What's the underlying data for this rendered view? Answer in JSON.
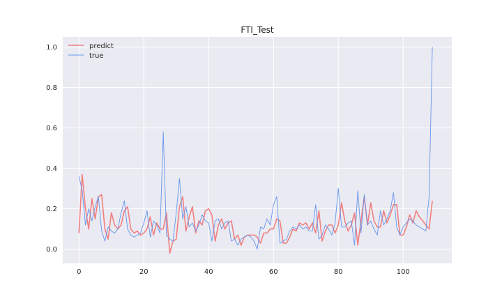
{
  "chart_data": {
    "type": "line",
    "title": "FTI_Test",
    "xlabel": "",
    "ylabel": "",
    "xlim": [
      -5,
      115
    ],
    "ylim": [
      -0.07,
      1.05
    ],
    "xticks": [
      0,
      20,
      40,
      60,
      80,
      100
    ],
    "yticks": [
      0.0,
      0.2,
      0.4,
      0.6,
      0.8,
      1.0
    ],
    "xtick_labels": [
      "0",
      "20",
      "40",
      "60",
      "80",
      "100"
    ],
    "ytick_labels": [
      "0.0",
      "0.2",
      "0.4",
      "0.6",
      "0.8",
      "1.0"
    ],
    "grid": true,
    "legend": "top-left",
    "x": [
      0,
      1,
      2,
      3,
      4,
      5,
      6,
      7,
      8,
      9,
      10,
      11,
      12,
      13,
      14,
      15,
      16,
      17,
      18,
      19,
      20,
      21,
      22,
      23,
      24,
      25,
      26,
      27,
      28,
      29,
      30,
      31,
      32,
      33,
      34,
      35,
      36,
      37,
      38,
      39,
      40,
      41,
      42,
      43,
      44,
      45,
      46,
      47,
      48,
      49,
      50,
      51,
      52,
      53,
      54,
      55,
      56,
      57,
      58,
      59,
      60,
      61,
      62,
      63,
      64,
      65,
      66,
      67,
      68,
      69,
      70,
      71,
      72,
      73,
      74,
      75,
      76,
      77,
      78,
      79,
      80,
      81,
      82,
      83,
      84,
      85,
      86,
      87,
      88,
      89,
      90,
      91,
      92,
      93,
      94,
      95,
      96,
      97,
      98,
      99,
      100,
      101,
      102,
      103,
      104,
      105,
      106,
      107,
      108,
      109
    ],
    "series": [
      {
        "name": "predict",
        "color": "#f08080",
        "values": [
          0.08,
          0.37,
          0.2,
          0.1,
          0.25,
          0.15,
          0.26,
          0.27,
          0.1,
          0.05,
          0.18,
          0.12,
          0.1,
          0.12,
          0.19,
          0.21,
          0.1,
          0.08,
          0.09,
          0.07,
          0.08,
          0.1,
          0.16,
          0.07,
          0.13,
          0.1,
          0.1,
          0.18,
          -0.02,
          0.04,
          0.05,
          0.21,
          0.26,
          0.09,
          0.16,
          0.21,
          0.08,
          0.14,
          0.12,
          0.19,
          0.2,
          0.17,
          0.04,
          0.12,
          0.15,
          0.1,
          0.13,
          0.14,
          0.05,
          0.07,
          0.02,
          0.06,
          0.07,
          0.07,
          0.07,
          0.06,
          0.03,
          0.08,
          0.08,
          0.1,
          0.1,
          0.15,
          0.14,
          0.03,
          0.03,
          0.06,
          0.1,
          0.09,
          0.13,
          0.12,
          0.13,
          0.1,
          0.13,
          0.08,
          0.19,
          0.04,
          0.09,
          0.12,
          0.12,
          0.08,
          0.12,
          0.23,
          0.14,
          0.09,
          0.12,
          0.18,
          0.02,
          0.14,
          0.26,
          0.12,
          0.23,
          0.14,
          0.11,
          0.11,
          0.19,
          0.13,
          0.17,
          0.22,
          0.22,
          0.07,
          0.07,
          0.11,
          0.17,
          0.13,
          0.19,
          0.16,
          0.14,
          0.12,
          0.1,
          0.24
        ]
      },
      {
        "name": "true",
        "color": "#6495ed",
        "values": [
          0.36,
          0.29,
          0.12,
          0.2,
          0.14,
          0.21,
          0.26,
          0.09,
          0.04,
          0.11,
          0.09,
          0.08,
          0.1,
          0.18,
          0.24,
          0.1,
          0.07,
          0.06,
          0.07,
          0.08,
          0.13,
          0.19,
          0.06,
          0.14,
          0.12,
          0.08,
          0.58,
          0.07,
          0.05,
          0.04,
          0.18,
          0.35,
          0.15,
          0.21,
          0.11,
          0.13,
          0.09,
          0.12,
          0.17,
          0.14,
          0.13,
          0.04,
          0.14,
          0.15,
          0.1,
          0.13,
          0.14,
          0.04,
          0.05,
          0.02,
          0.05,
          0.06,
          0.07,
          0.06,
          0.04,
          0.0,
          0.11,
          0.1,
          0.15,
          0.12,
          0.22,
          0.26,
          0.03,
          0.04,
          0.05,
          0.09,
          0.11,
          0.1,
          0.12,
          0.1,
          0.11,
          0.09,
          0.09,
          0.22,
          0.05,
          0.07,
          0.12,
          0.1,
          0.07,
          0.13,
          0.3,
          0.11,
          0.11,
          0.13,
          0.14,
          0.02,
          0.29,
          0.08,
          0.27,
          0.12,
          0.14,
          0.1,
          0.07,
          0.19,
          0.12,
          0.15,
          0.19,
          0.28,
          0.11,
          0.07,
          0.11,
          0.13,
          0.15,
          0.14,
          0.12,
          0.11,
          0.1,
          0.09,
          0.26,
          1.0
        ]
      }
    ]
  }
}
